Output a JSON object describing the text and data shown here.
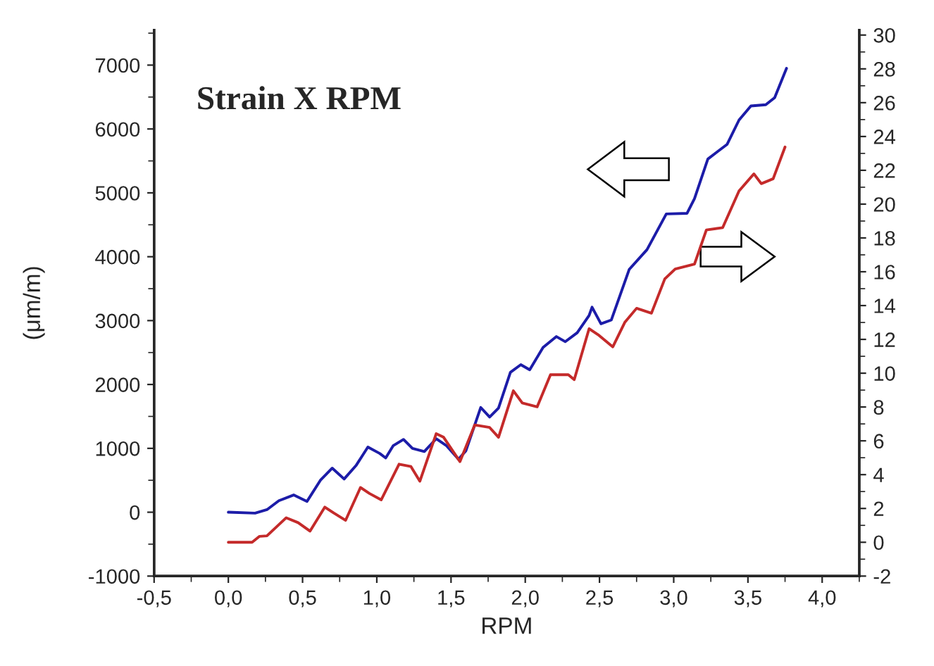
{
  "chart_data": {
    "type": "line",
    "title": "Strain X RPM",
    "xlabel": "RPM",
    "ylabel": "(μm/m)",
    "xlim": [
      -0.5,
      4.25
    ],
    "ylim": [
      -1000,
      7550
    ],
    "y2lim": [
      -2,
      30.3
    ],
    "xticks": [
      {
        "value": -0.5,
        "label": "-0,5"
      },
      {
        "value": 0,
        "label": "0,0"
      },
      {
        "value": 0.5,
        "label": "0,5"
      },
      {
        "value": 1,
        "label": "1,0"
      },
      {
        "value": 1.5,
        "label": "1,5"
      },
      {
        "value": 2,
        "label": "2,0"
      },
      {
        "value": 2.5,
        "label": "2,5"
      },
      {
        "value": 3,
        "label": "3,0"
      },
      {
        "value": 3.5,
        "label": "3,5"
      },
      {
        "value": 4,
        "label": "4,0"
      }
    ],
    "yticks": [
      -1000,
      0,
      1000,
      2000,
      3000,
      4000,
      5000,
      6000,
      7000
    ],
    "y2ticks": [
      -2,
      0,
      2,
      4,
      6,
      8,
      10,
      12,
      14,
      16,
      18,
      20,
      22,
      24,
      26,
      28,
      30
    ],
    "grid": false,
    "legend": false,
    "marker": "none",
    "line_style": "solid",
    "series": [
      {
        "color": "#1c1ca8",
        "x": [
          0,
          0.18,
          0.26,
          0.34,
          0.44,
          0.53,
          0.62,
          0.7,
          0.78,
          0.86,
          0.94,
          1.02,
          1.06,
          1.11,
          1.18,
          1.24,
          1.32,
          1.4,
          1.47,
          1.55,
          1.6,
          1.7,
          1.76,
          1.82,
          1.9,
          1.97,
          2.03,
          2.12,
          2.21,
          2.27,
          2.35,
          2.43,
          2.45,
          2.51,
          2.58,
          2.7,
          2.82,
          2.95,
          3.09,
          3.14,
          3.23,
          3.36,
          3.44,
          3.52,
          3.62,
          3.68,
          3.76
        ],
        "values": [
          0,
          -15,
          40,
          180,
          270,
          170,
          500,
          690,
          520,
          730,
          1020,
          920,
          850,
          1040,
          1140,
          1000,
          950,
          1150,
          1040,
          830,
          960,
          1640,
          1490,
          1630,
          2190,
          2310,
          2230,
          2580,
          2750,
          2670,
          2810,
          3080,
          3210,
          2950,
          3010,
          3800,
          4110,
          4670,
          4680,
          4910,
          5530,
          5760,
          6140,
          6360,
          6380,
          6490,
          6950
        ]
      },
      {
        "color": "#c42a2a",
        "axis": "y2",
        "x": [
          0,
          0.16,
          0.21,
          0.26,
          0.39,
          0.47,
          0.55,
          0.65,
          0.71,
          0.79,
          0.89,
          0.95,
          1.03,
          1.15,
          1.23,
          1.29,
          1.4,
          1.45,
          1.56,
          1.66,
          1.76,
          1.82,
          1.92,
          1.98,
          2.08,
          2.17,
          2.29,
          2.33,
          2.43,
          2.49,
          2.59,
          2.67,
          2.75,
          2.85,
          2.94,
          3.01,
          3.14,
          3.22,
          3.33,
          3.44,
          3.54,
          3.59,
          3.67,
          3.75
        ],
        "values": [
          0,
          0,
          0.35,
          0.38,
          1.45,
          1.16,
          0.66,
          2.08,
          1.73,
          1.3,
          3.24,
          2.89,
          2.51,
          4.62,
          4.48,
          3.61,
          6.42,
          6.21,
          4.77,
          6.94,
          6.79,
          6.21,
          8.96,
          8.24,
          8.01,
          9.91,
          9.91,
          9.62,
          12.63,
          12.28,
          11.56,
          13.0,
          13.84,
          13.55,
          15.58,
          16.16,
          16.45,
          18.47,
          18.61,
          20.78,
          21.79,
          21.21,
          21.5,
          23.38
        ]
      }
    ]
  }
}
